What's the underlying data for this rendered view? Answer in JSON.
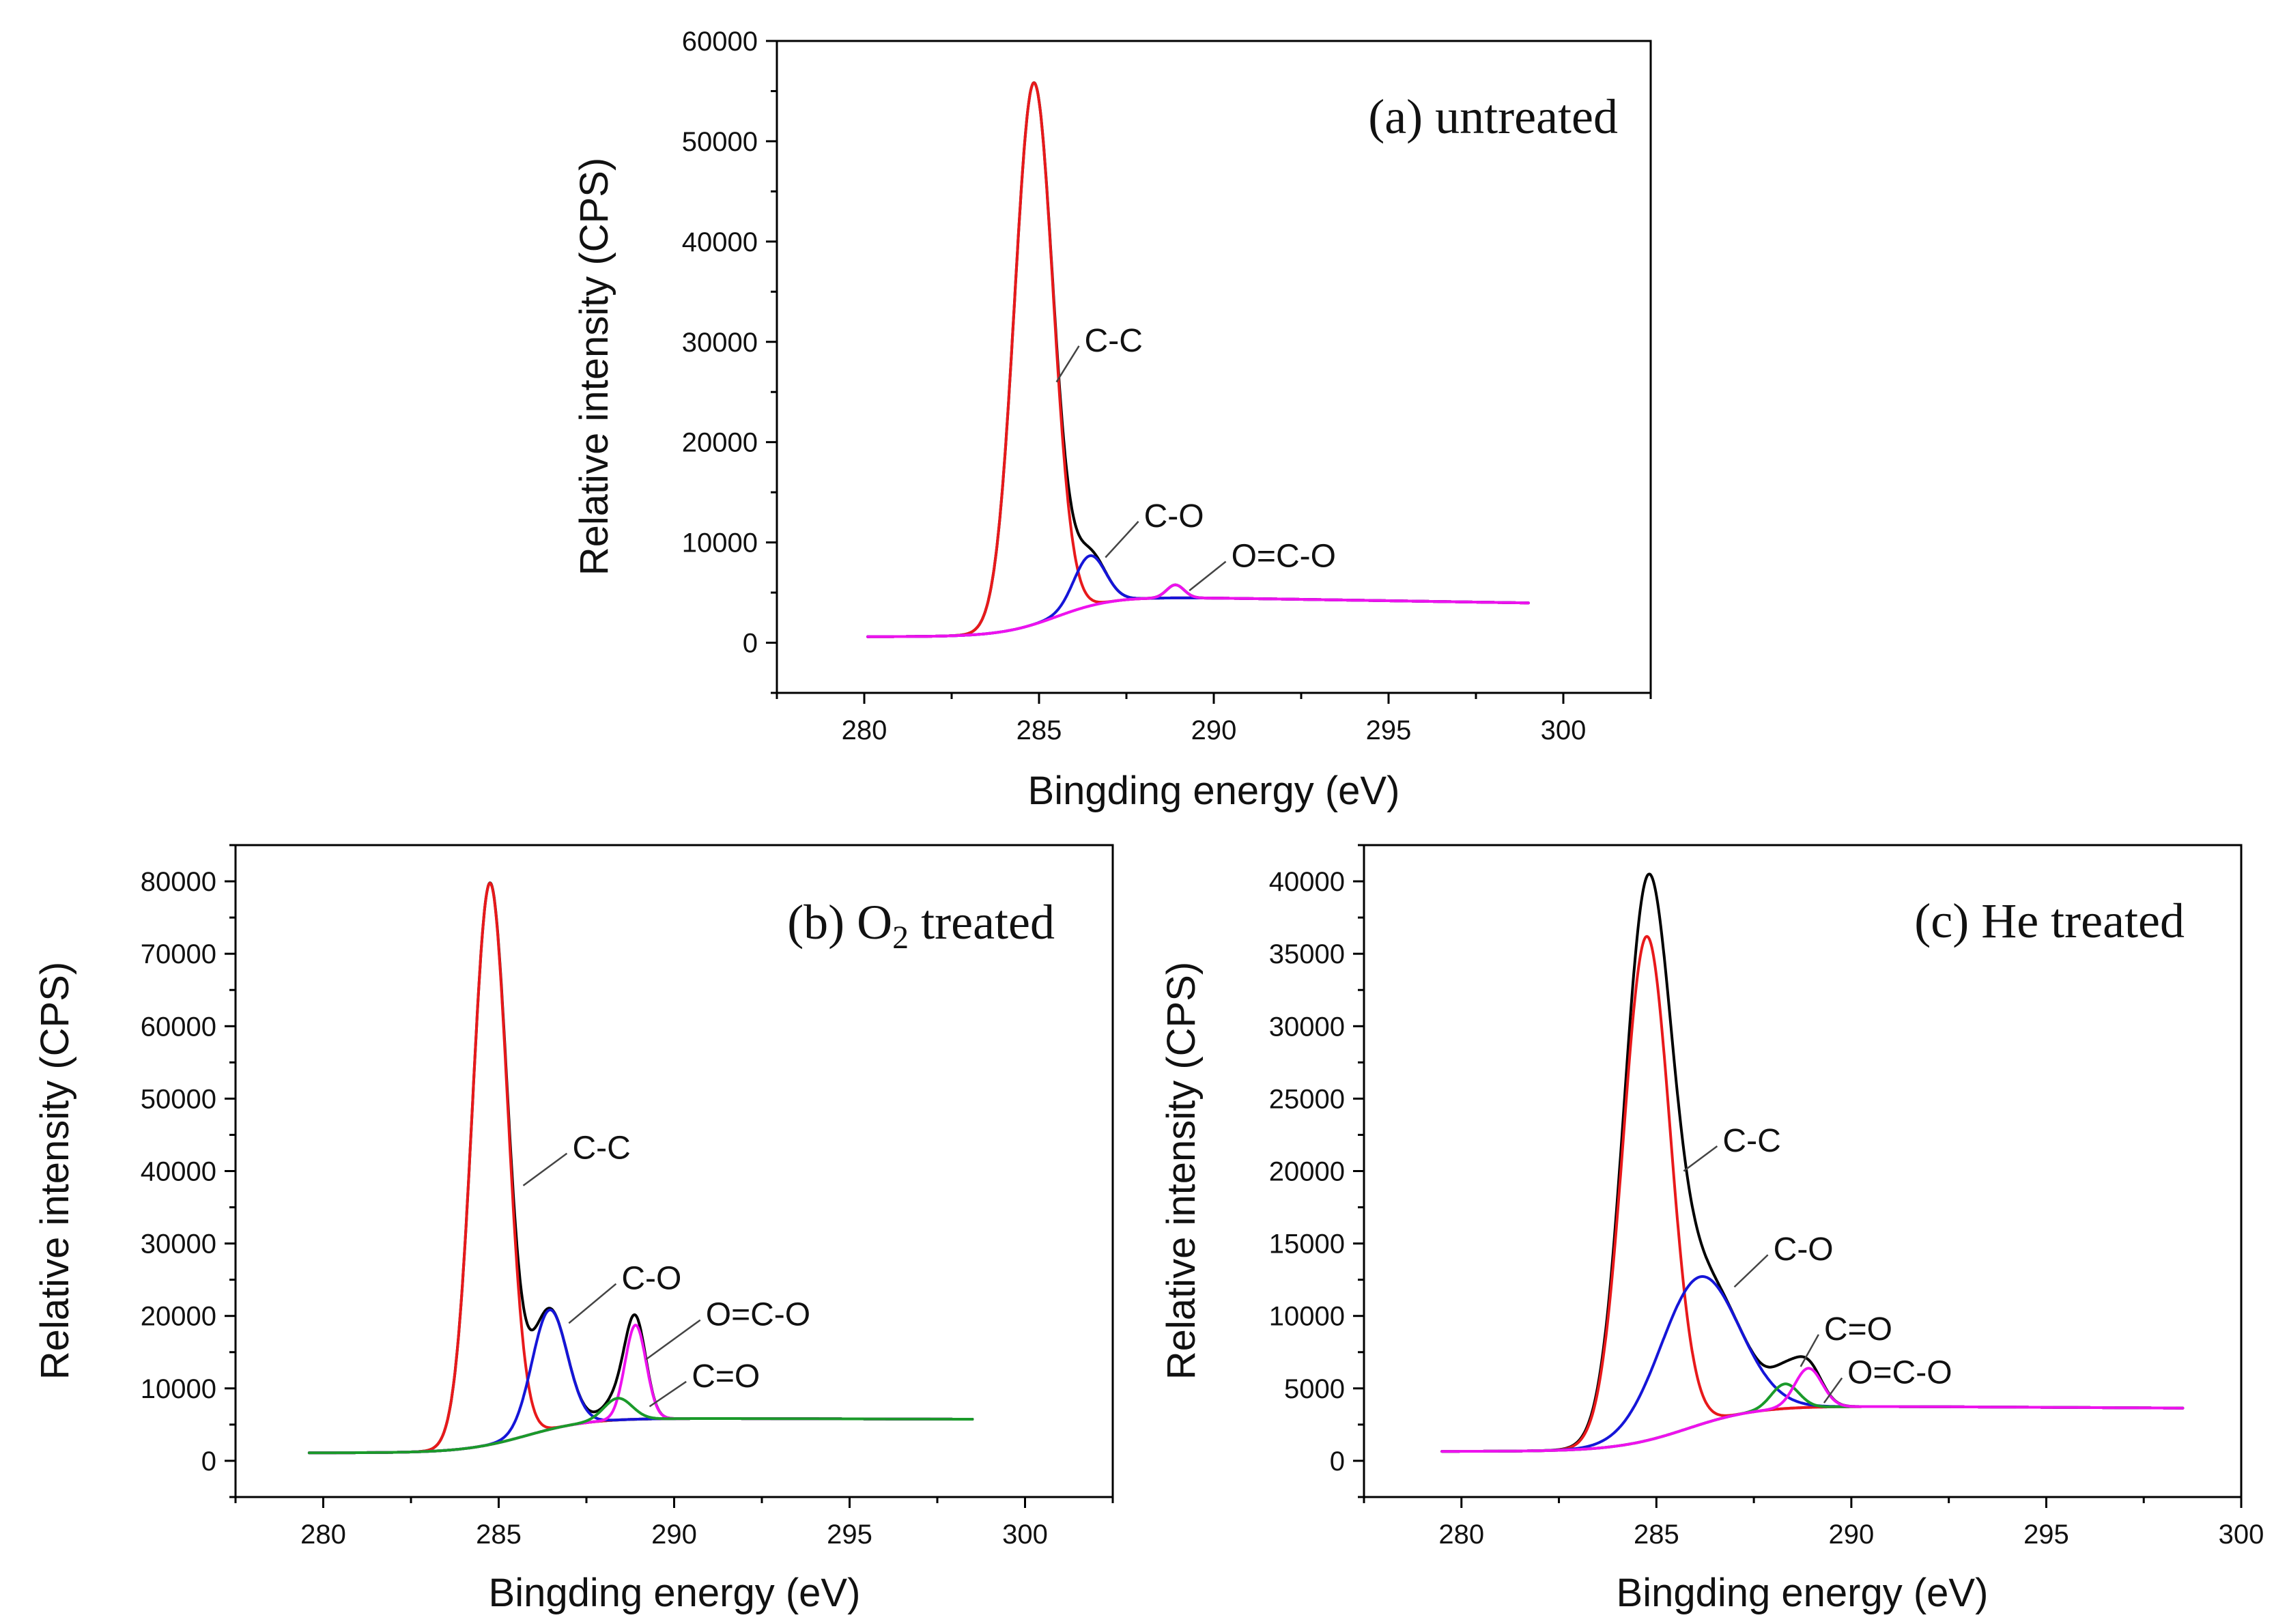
{
  "chart_data": [
    {
      "type": "line",
      "panel": "a",
      "title": "(a) untreated",
      "xlabel": "Bingding energy (eV)",
      "ylabel": "Relative intensity (CPS)",
      "xlim": [
        277.5,
        302.5
      ],
      "ylim": [
        -5000,
        60000
      ],
      "xticks": [
        280,
        285,
        290,
        295,
        300
      ],
      "yticks": [
        0,
        10000,
        20000,
        30000,
        40000,
        50000,
        60000
      ],
      "xrange": [
        280.1,
        299.0
      ],
      "background": {
        "low": 600,
        "high": 4600,
        "center": 285.5,
        "width": 0.8,
        "tail_slope": -55
      },
      "components": [
        {
          "name": "C-C",
          "color": "#e8191b",
          "center": 284.85,
          "amplitude": 54000,
          "sigma": 0.55
        },
        {
          "name": "C-O",
          "color": "#1515d8",
          "center": 286.45,
          "amplitude": 5000,
          "sigma": 0.45
        },
        {
          "name": "O=C-O",
          "color": "#ee12ee",
          "center": 288.9,
          "amplitude": 1300,
          "sigma": 0.25
        }
      ],
      "envelope_color": "#000000",
      "annotations": [
        {
          "text": "C-C",
          "target": [
            285.5,
            26000
          ],
          "label": [
            286.3,
            30000
          ]
        },
        {
          "text": "C-O",
          "target": [
            286.9,
            8500
          ],
          "label": [
            288.0,
            12500
          ]
        },
        {
          "text": "O=C-O",
          "target": [
            289.3,
            5200
          ],
          "label": [
            290.5,
            8500
          ]
        }
      ]
    },
    {
      "type": "line",
      "panel": "b",
      "title_prefix": "(b) O",
      "title_sub": "2",
      "title_suffix": " treated",
      "xlabel": "Bingding energy (eV)",
      "ylabel": "Relative intensity (CPS)",
      "xlim": [
        277.5,
        302.5
      ],
      "ylim": [
        -5000,
        85000
      ],
      "xticks": [
        280,
        285,
        290,
        295,
        300
      ],
      "yticks": [
        0,
        10000,
        20000,
        30000,
        40000,
        50000,
        60000,
        70000,
        80000
      ],
      "xrange": [
        279.6,
        298.5
      ],
      "background": {
        "low": 1100,
        "high": 5900,
        "center": 285.8,
        "width": 0.9,
        "tail_slope": -15
      },
      "components": [
        {
          "name": "C-C",
          "color": "#e8191b",
          "center": 284.75,
          "amplitude": 77500,
          "sigma": 0.5
        },
        {
          "name": "C-O",
          "color": "#1515d8",
          "center": 286.45,
          "amplitude": 16500,
          "sigma": 0.5
        },
        {
          "name": "O=C-O",
          "color": "#ee12ee",
          "center": 288.9,
          "amplitude": 13000,
          "sigma": 0.3
        },
        {
          "name": "C=O",
          "color": "#1a9a2a",
          "center": 288.4,
          "amplitude": 3000,
          "sigma": 0.4
        }
      ],
      "envelope_color": "#000000",
      "annotations": [
        {
          "text": "C-C",
          "target": [
            285.7,
            38000
          ],
          "label": [
            287.1,
            43000
          ]
        },
        {
          "text": "C-O",
          "target": [
            287.0,
            19000
          ],
          "label": [
            288.5,
            25000
          ]
        },
        {
          "text": "O=C-O",
          "target": [
            289.2,
            14000
          ],
          "label": [
            290.9,
            20000
          ]
        },
        {
          "text": "C=O",
          "target": [
            289.3,
            7500
          ],
          "label": [
            290.5,
            11500
          ]
        }
      ]
    },
    {
      "type": "line",
      "panel": "c",
      "title": "(c) He treated",
      "xlabel": "Bingding energy (eV)",
      "ylabel": "Relative intensity (CPS)",
      "xlim": [
        277.5,
        300
      ],
      "ylim": [
        -2500,
        42500
      ],
      "xticks": [
        280,
        285,
        290,
        295,
        300
      ],
      "yticks": [
        0,
        5000,
        10000,
        15000,
        20000,
        25000,
        30000,
        35000,
        40000
      ],
      "xrange": [
        279.5,
        298.5
      ],
      "background": {
        "low": 650,
        "high": 3800,
        "center": 285.8,
        "width": 0.9,
        "tail_slope": -15
      },
      "components": [
        {
          "name": "C-C",
          "color": "#e8191b",
          "center": 284.75,
          "amplitude": 34800,
          "sigma": 0.6
        },
        {
          "name": "C-O",
          "color": "#1515d8",
          "center": 286.1,
          "amplitude": 10200,
          "sigma": 1.0
        },
        {
          "name": "C=O",
          "color": "#1a9a2a",
          "center": 288.3,
          "amplitude": 1700,
          "sigma": 0.35
        },
        {
          "name": "O=C-O",
          "color": "#ee12ee",
          "center": 288.9,
          "amplitude": 2700,
          "sigma": 0.35
        }
      ],
      "envelope_color": "#000000",
      "annotations": [
        {
          "text": "C-C",
          "target": [
            285.7,
            20000
          ],
          "label": [
            286.7,
            22000
          ]
        },
        {
          "text": "C-O",
          "target": [
            287.0,
            12000
          ],
          "label": [
            288.0,
            14500
          ]
        },
        {
          "text": "C=O",
          "target": [
            288.7,
            6500
          ],
          "label": [
            289.3,
            9000
          ]
        },
        {
          "text": "O=C-O",
          "target": [
            289.3,
            4000
          ],
          "label": [
            289.9,
            6000
          ]
        }
      ]
    }
  ]
}
